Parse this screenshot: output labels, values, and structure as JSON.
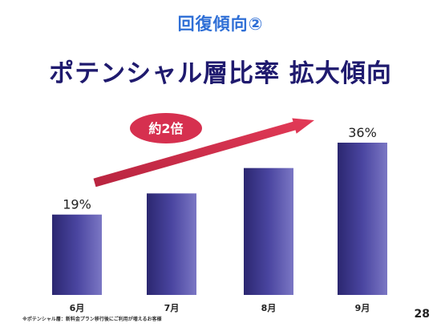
{
  "header": {
    "subtitle": "回復傾向②",
    "title": "ポテンシャル層比率 拡大傾向"
  },
  "chart_data": {
    "type": "bar",
    "categories": [
      "6月",
      "7月",
      "8月",
      "9月"
    ],
    "values": [
      19,
      24,
      30,
      36
    ],
    "data_labels": [
      "19%",
      "",
      "",
      "36%"
    ],
    "ylim": [
      0,
      36
    ],
    "bar_color": "#3d3880",
    "annotation": {
      "label": "約2倍",
      "color": "#d6304f"
    }
  },
  "footnote": "※ポテンシャル層：新料金プラン移行後にご利用が増えるお客様",
  "page_number": "28"
}
